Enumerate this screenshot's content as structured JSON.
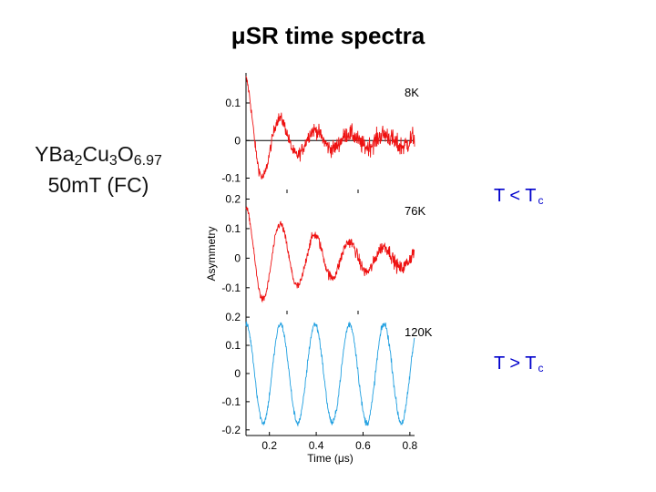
{
  "slide": {
    "title": "μSR time spectra",
    "sample": {
      "formula_parts": [
        "YBa",
        "2",
        "Cu",
        "3",
        "O",
        "6.97"
      ],
      "field": "50mT (FC)"
    },
    "conditions": [
      {
        "label": "T < T",
        "sub": "c",
        "color": "#0000cc"
      },
      {
        "label": "T > T",
        "sub": "c",
        "color": "#0000cc"
      }
    ]
  },
  "chart_data": [
    {
      "type": "line",
      "panel_label": "8K",
      "ylabel": "",
      "xlabel": "",
      "xlim": [
        0.1,
        0.82
      ],
      "ylim": [
        -0.14,
        0.18
      ],
      "yticks": [
        "0.1",
        "0",
        "-0.1"
      ],
      "ytick_values": [
        0.1,
        0,
        -0.1
      ],
      "color": "#ee1111",
      "series": [
        {
          "amplitude0": 0.15,
          "decay_us": 0.12,
          "floor": 0.015,
          "frequency_MHz": 6.78,
          "phase": 0,
          "noise_start": 0.012,
          "noise_end": 0.03
        }
      ]
    },
    {
      "type": "line",
      "panel_label": "76K",
      "ylabel": "Asymmetry",
      "xlabel": "",
      "xlim": [
        0.1,
        0.82
      ],
      "ylim": [
        -0.19,
        0.22
      ],
      "yticks": [
        "0.2",
        "0.1",
        "0",
        "-0.1"
      ],
      "ytick_values": [
        0.2,
        0.1,
        0,
        -0.1
      ],
      "color": "#ee1111",
      "series": [
        {
          "amplitude0": 0.16,
          "decay_us": 0.35,
          "floor": 0.01,
          "frequency_MHz": 6.78,
          "phase": 0,
          "noise_start": 0.01,
          "noise_end": 0.025
        }
      ]
    },
    {
      "type": "line",
      "panel_label": "120K",
      "ylabel": "",
      "xlabel": "Time (μs)",
      "xlim": [
        0.1,
        0.82
      ],
      "ylim": [
        -0.22,
        0.21
      ],
      "yticks": [
        "0.2",
        "0.1",
        "0",
        "-0.1",
        "-0.2"
      ],
      "ytick_values": [
        0.2,
        0.1,
        0,
        -0.1,
        -0.2
      ],
      "xticks": [
        "0.2",
        "0.4",
        "0.6",
        "0.8"
      ],
      "xtick_values": [
        0.2,
        0.4,
        0.6,
        0.8
      ],
      "color": "#1f9fe0",
      "series": [
        {
          "amplitude0": 0.175,
          "decay_us": 0,
          "floor": 0,
          "frequency_MHz": 6.78,
          "phase": 0,
          "noise_start": 0.01,
          "noise_end": 0.014
        }
      ]
    }
  ]
}
